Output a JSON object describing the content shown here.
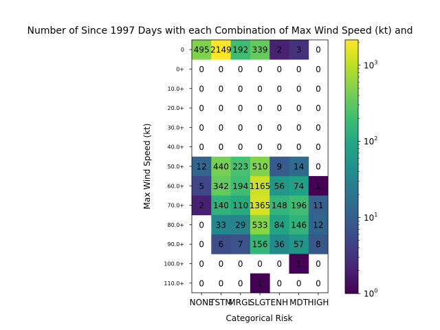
{
  "chart_data": {
    "type": "heatmap",
    "title": "Number of Since 1997 Days with each Combination of Max Wind Speed (kt) and",
    "xlabel": "Categorical Risk",
    "ylabel": "Max Wind Speed (kt)",
    "x_categories": [
      "NONE",
      "TSTM",
      "MRGL",
      "SLGT",
      "ENH",
      "MDT",
      "HIGH"
    ],
    "y_categories": [
      "0",
      "0+",
      "10.0+",
      "20.0+",
      "30.0+",
      "40.0+",
      "50.0+",
      "60.0+",
      "70.0+",
      "80.0+",
      "90.0+",
      "100.0+",
      "110.0+"
    ],
    "values": [
      [
        495,
        2149,
        192,
        339,
        2,
        3,
        0
      ],
      [
        0,
        0,
        0,
        0,
        0,
        0,
        0
      ],
      [
        0,
        0,
        0,
        0,
        0,
        0,
        0
      ],
      [
        0,
        0,
        0,
        0,
        0,
        0,
        0
      ],
      [
        0,
        0,
        0,
        0,
        0,
        0,
        0
      ],
      [
        0,
        0,
        0,
        0,
        0,
        0,
        0
      ],
      [
        12,
        440,
        223,
        510,
        9,
        14,
        0
      ],
      [
        5,
        342,
        194,
        1165,
        56,
        74,
        1
      ],
      [
        2,
        140,
        110,
        1365,
        148,
        196,
        11
      ],
      [
        0,
        33,
        29,
        533,
        84,
        146,
        12
      ],
      [
        0,
        6,
        7,
        156,
        36,
        57,
        8
      ],
      [
        0,
        0,
        0,
        0,
        0,
        1,
        0
      ],
      [
        0,
        0,
        0,
        1,
        0,
        0,
        0
      ]
    ],
    "colorscale": "viridis",
    "color_scale_type": "log",
    "color_range": [
      1,
      2149
    ],
    "colorbar_ticks": [
      {
        "value": 1,
        "base": "10",
        "exp": "0"
      },
      {
        "value": 10,
        "base": "10",
        "exp": "1"
      },
      {
        "value": 100,
        "base": "10",
        "exp": "2"
      },
      {
        "value": 1000,
        "base": "10",
        "exp": "3"
      }
    ],
    "zero_cells": "blank",
    "grid": false
  }
}
